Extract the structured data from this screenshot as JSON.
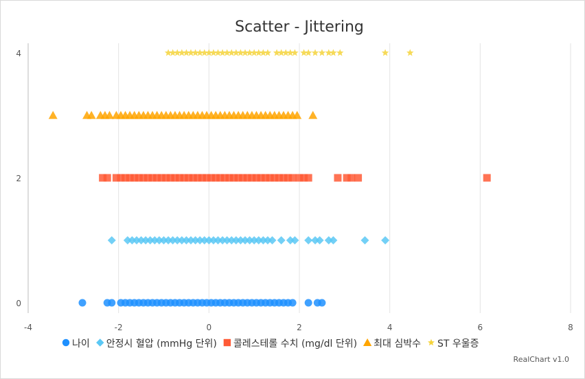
{
  "chart_data": {
    "type": "scatter",
    "title": "Scatter - Jittering",
    "credit": "RealChart v1.0",
    "xlim": [
      -4,
      8
    ],
    "ylim": [
      0,
      4
    ],
    "x_ticks": [
      "-4",
      "-2",
      "0",
      "2",
      "4",
      "6",
      "8"
    ],
    "y_ticks": [
      "0",
      "2",
      "4"
    ],
    "grid": {
      "vertical": true,
      "horizontal": false
    },
    "legend_position": "bottom",
    "series": [
      {
        "name": "나이",
        "marker": "circle",
        "color": "#1e90ff",
        "y": 0,
        "x": [
          -2.8,
          -2.25,
          -2.15,
          -1.95,
          -1.85,
          -1.75,
          -1.65,
          -1.55,
          -1.45,
          -1.35,
          -1.25,
          -1.15,
          -1.05,
          -0.95,
          -0.85,
          -0.75,
          -0.65,
          -0.55,
          -0.45,
          -0.35,
          -0.25,
          -0.15,
          -0.05,
          0.05,
          0.15,
          0.25,
          0.35,
          0.45,
          0.55,
          0.65,
          0.75,
          0.85,
          0.95,
          1.05,
          1.15,
          1.25,
          1.35,
          1.45,
          1.55,
          1.65,
          1.75,
          1.85,
          2.2,
          2.4,
          2.5
        ]
      },
      {
        "name": "안정시 혈압 (mmHg 단위)",
        "marker": "diamond",
        "color": "#5bc8f5",
        "y": 1,
        "x": [
          -2.15,
          -1.8,
          -1.7,
          -1.6,
          -1.5,
          -1.4,
          -1.3,
          -1.2,
          -1.1,
          -1.0,
          -0.9,
          -0.8,
          -0.7,
          -0.6,
          -0.5,
          -0.4,
          -0.3,
          -0.2,
          -0.1,
          0.0,
          0.1,
          0.2,
          0.3,
          0.4,
          0.5,
          0.6,
          0.7,
          0.8,
          0.9,
          1.0,
          1.1,
          1.2,
          1.3,
          1.4,
          1.6,
          1.8,
          1.9,
          2.2,
          2.35,
          2.45,
          2.65,
          2.75,
          3.45,
          3.9
        ]
      },
      {
        "name": "콜레스테롤 수치 (mg/dl 단위)",
        "marker": "square",
        "color": "#ff5a36",
        "y": 2,
        "x": [
          -2.35,
          -2.25,
          -2.05,
          -1.95,
          -1.85,
          -1.75,
          -1.65,
          -1.55,
          -1.45,
          -1.35,
          -1.25,
          -1.15,
          -1.05,
          -0.95,
          -0.85,
          -0.75,
          -0.65,
          -0.55,
          -0.45,
          -0.35,
          -0.25,
          -0.15,
          -0.05,
          0.05,
          0.15,
          0.25,
          0.35,
          0.45,
          0.55,
          0.65,
          0.75,
          0.85,
          0.95,
          1.05,
          1.15,
          1.25,
          1.35,
          1.45,
          1.55,
          1.65,
          1.75,
          1.85,
          2.0,
          2.1,
          2.2,
          2.85,
          3.05,
          3.15,
          3.3,
          6.15
        ]
      },
      {
        "name": "최대 심박수",
        "marker": "triangle",
        "color": "#ffa500",
        "y": 3,
        "x": [
          -3.45,
          -2.7,
          -2.6,
          -2.4,
          -2.3,
          -2.2,
          -2.05,
          -1.95,
          -1.85,
          -1.75,
          -1.65,
          -1.55,
          -1.45,
          -1.35,
          -1.25,
          -1.15,
          -1.05,
          -0.95,
          -0.85,
          -0.75,
          -0.65,
          -0.55,
          -0.45,
          -0.35,
          -0.25,
          -0.15,
          -0.05,
          0.05,
          0.15,
          0.25,
          0.35,
          0.45,
          0.55,
          0.65,
          0.75,
          0.85,
          0.95,
          1.05,
          1.15,
          1.25,
          1.35,
          1.45,
          1.55,
          1.65,
          1.75,
          1.85,
          1.95,
          2.3
        ]
      },
      {
        "name": "ST 우울증",
        "marker": "star",
        "color": "#f5d33b",
        "y": 4,
        "x": [
          -0.9,
          -0.8,
          -0.7,
          -0.6,
          -0.5,
          -0.4,
          -0.3,
          -0.2,
          -0.1,
          0.0,
          0.1,
          0.2,
          0.3,
          0.4,
          0.5,
          0.6,
          0.7,
          0.8,
          0.9,
          1.0,
          1.1,
          1.2,
          1.3,
          1.5,
          1.6,
          1.7,
          1.8,
          1.9,
          2.1,
          2.2,
          2.35,
          2.5,
          2.65,
          2.75,
          2.9,
          3.9,
          4.45
        ]
      }
    ]
  }
}
